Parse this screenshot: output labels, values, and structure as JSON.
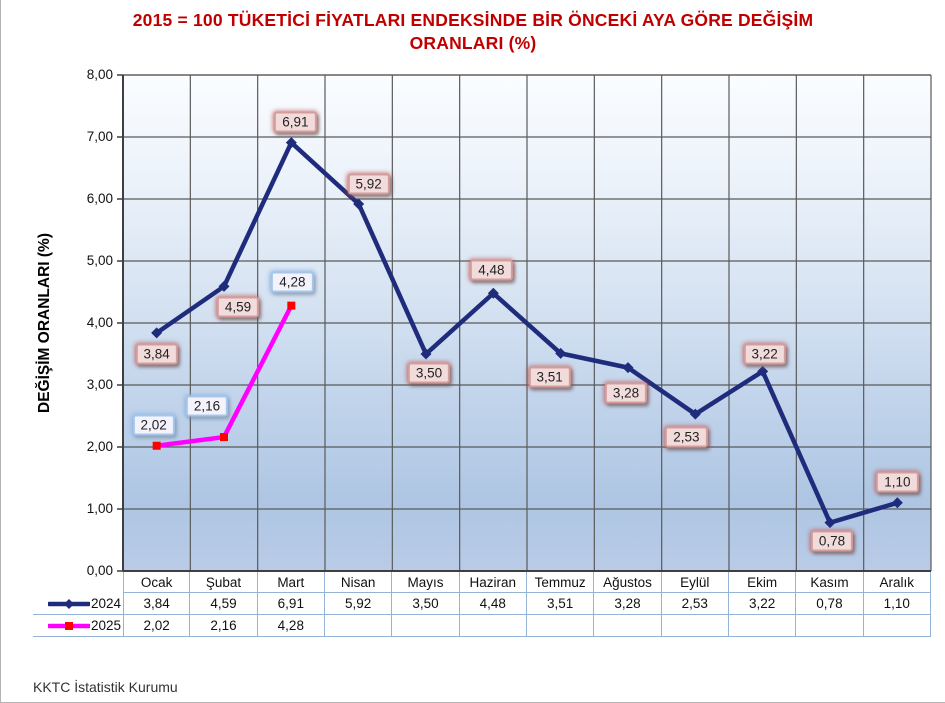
{
  "title": {
    "lines": [
      "2015 = 100 TÜKETİCİ FİYATLARI ENDEKSİNDE BİR ÖNCEKİ AYA GÖRE DEĞİŞİM",
      "ORANLARI (%)"
    ],
    "color": "#C00000"
  },
  "y_axis": {
    "label": "DEĞİŞİM ORANLARI (%)",
    "tick_labels": [
      "0,00",
      "1,00",
      "2,00",
      "3,00",
      "4,00",
      "5,00",
      "6,00",
      "7,00",
      "8,00"
    ]
  },
  "source": "KKTC İstatistik Kurumu",
  "colors": {
    "title": "#C00000",
    "series_2024": "#1F2C7C",
    "series_2025": "#FF00FF",
    "marker_2025": "#FF0000",
    "gridline": "#5a5a5a",
    "axis": "#3f3f3f",
    "table_border": "#95B3D7",
    "label_2024_fill": "#F2DCDB",
    "label_2025_fill": "#F4F3FB"
  },
  "chart_data": {
    "type": "line",
    "title": "2015 = 100 TÜKETİCİ FİYATLARI ENDEKSİNDE BİR ÖNCEKİ AYA GÖRE DEĞİŞİM ORANLARI (%)",
    "ylabel": "DEĞİŞİM ORANLARI (%)",
    "ylim": [
      0,
      8
    ],
    "y_tick_step": 1,
    "grid": true,
    "legend_position": "table-left",
    "categories": [
      "Ocak",
      "Şubat",
      "Mart",
      "Nisan",
      "Mayıs",
      "Haziran",
      "Temmuz",
      "Ağustos",
      "Eylül",
      "Ekim",
      "Kasım",
      "Aralık"
    ],
    "series": [
      {
        "name": "2024",
        "color": "#1F2C7C",
        "marker": "diamond",
        "values": [
          3.84,
          4.59,
          6.91,
          5.92,
          3.5,
          4.48,
          3.51,
          3.28,
          2.53,
          3.22,
          0.78,
          1.1
        ],
        "display": [
          "3,84",
          "4,59",
          "6,91",
          "5,92",
          "3,50",
          "4,48",
          "3,51",
          "3,28",
          "2,53",
          "3,22",
          "0,78",
          "1,10"
        ]
      },
      {
        "name": "2025",
        "color": "#FF00FF",
        "marker": "square",
        "marker_color": "#FF0000",
        "values": [
          2.02,
          2.16,
          4.28
        ],
        "display": [
          "2,02",
          "2,16",
          "4,28"
        ]
      }
    ]
  }
}
